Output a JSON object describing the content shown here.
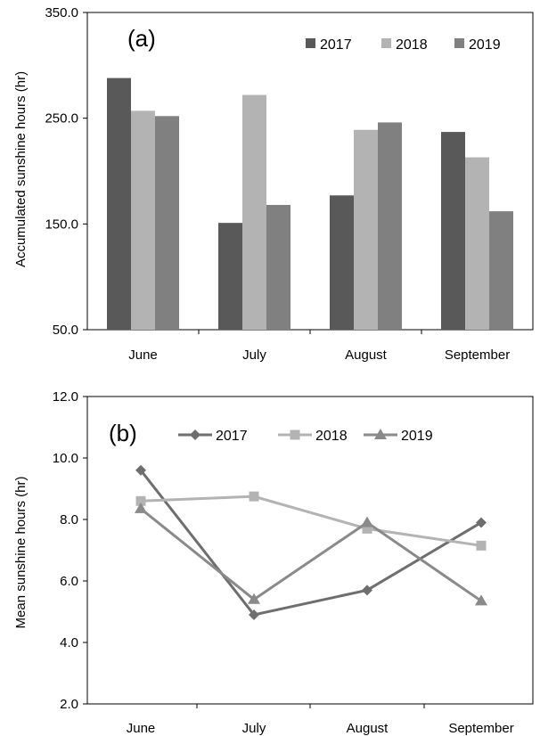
{
  "chart_data": [
    {
      "type": "bar",
      "panel_label": "(a)",
      "ylabel": "Accumulated sunshine hours (hr)",
      "ylim": [
        50,
        350
      ],
      "yticks": [
        "50.0",
        "150.0",
        "250.0",
        "350.0"
      ],
      "grid": false,
      "legend_position": "top-right",
      "categories": [
        "June",
        "July",
        "August",
        "September"
      ],
      "series": [
        {
          "name": "2017",
          "color": "#595959",
          "values": [
            288,
            151,
            177,
            237
          ]
        },
        {
          "name": "2018",
          "color": "#b3b3b3",
          "values": [
            257,
            272,
            239,
            213
          ]
        },
        {
          "name": "2019",
          "color": "#808080",
          "values": [
            252,
            168,
            246,
            162
          ]
        }
      ]
    },
    {
      "type": "line",
      "panel_label": "(b)",
      "ylabel": "Mean sunshine hours (hr)",
      "ylim": [
        2,
        12
      ],
      "yticks": [
        "2.0",
        "4.0",
        "6.0",
        "8.0",
        "10.0",
        "12.0"
      ],
      "grid": false,
      "legend_position": "top",
      "categories": [
        "June",
        "July",
        "August",
        "September"
      ],
      "series": [
        {
          "name": "2017",
          "color": "#6e6e6e",
          "marker": "diamond",
          "values": [
            9.6,
            4.9,
            5.7,
            7.9
          ]
        },
        {
          "name": "2018",
          "color": "#b3b3b3",
          "marker": "square",
          "values": [
            8.6,
            8.75,
            7.7,
            7.15
          ]
        },
        {
          "name": "2019",
          "color": "#8a8a8a",
          "marker": "triangle",
          "values": [
            8.35,
            5.4,
            7.9,
            5.35
          ]
        }
      ]
    }
  ]
}
